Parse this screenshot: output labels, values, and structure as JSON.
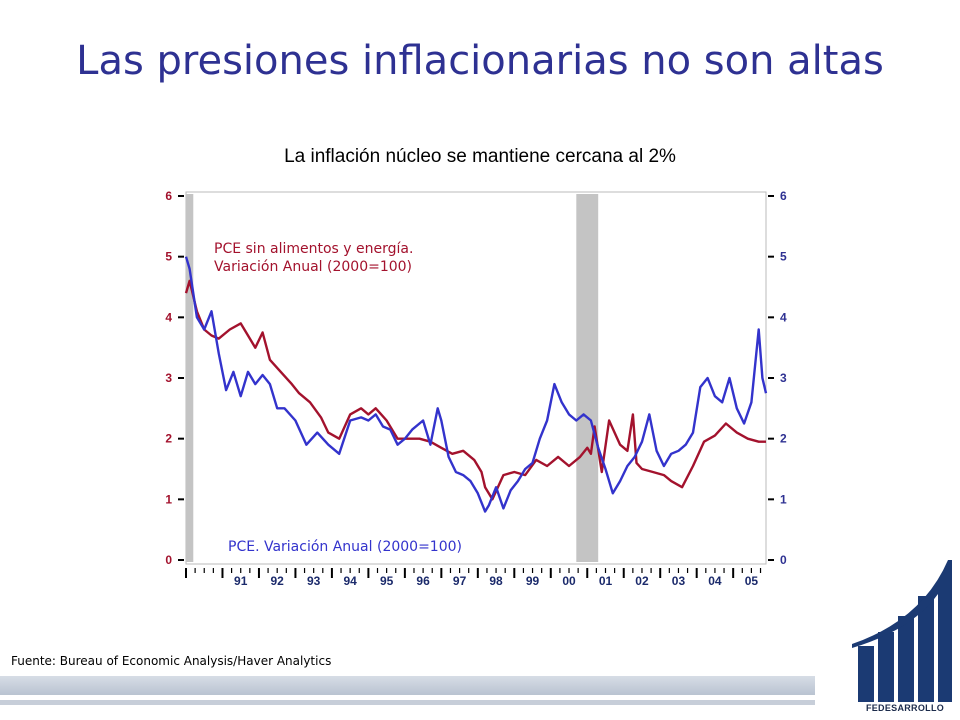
{
  "slide": {
    "title": "Las presiones inflacionarias no son altas",
    "source": "Fuente: Bureau  of Economic Analysis/Haver Analytics",
    "logo_text": "FEDESARROLLO"
  },
  "chart_data": {
    "type": "line",
    "title": "La inflación núcleo se mantiene cercana al 2%",
    "xlabel": "",
    "ylabel": "",
    "x_range": [
      1990.0,
      2005.9
    ],
    "ylim": [
      0,
      6
    ],
    "y_ticks": [
      0,
      1,
      2,
      3,
      4,
      5,
      6
    ],
    "x_tick_labels": [
      "91",
      "92",
      "93",
      "94",
      "95",
      "96",
      "97",
      "98",
      "99",
      "00",
      "01",
      "02",
      "03",
      "04",
      "05"
    ],
    "x_tick_years": [
      1991,
      1992,
      1993,
      1994,
      1995,
      1996,
      1997,
      1998,
      1999,
      2000,
      2001,
      2002,
      2003,
      2004,
      2005
    ],
    "grid": false,
    "recessions": [
      [
        1990.0,
        1990.2
      ],
      [
        2000.7,
        2001.3
      ]
    ],
    "series": [
      {
        "name": "PCE sin alimentos y energía. Variación Anual (2000=100)",
        "color": "#a3122d",
        "x": [
          1990.0,
          1990.1,
          1990.3,
          1990.5,
          1990.7,
          1990.9,
          1991.2,
          1991.5,
          1991.7,
          1991.9,
          1992.1,
          1992.3,
          1992.6,
          1992.9,
          1993.1,
          1993.4,
          1993.7,
          1993.9,
          1994.2,
          1994.5,
          1994.8,
          1995.0,
          1995.2,
          1995.5,
          1995.8,
          1996.1,
          1996.4,
          1996.7,
          1997.0,
          1997.3,
          1997.6,
          1997.9,
          1998.1,
          1998.2,
          1998.4,
          1998.7,
          1999.0,
          1999.3,
          1999.6,
          1999.9,
          2000.2,
          2000.5,
          2000.8,
          2001.0,
          2001.1,
          2001.2,
          2001.4,
          2001.6,
          2001.9,
          2002.1,
          2002.25,
          2002.35,
          2002.5,
          2002.8,
          2003.1,
          2003.3,
          2003.6,
          2003.9,
          2004.2,
          2004.5,
          2004.8,
          2005.1,
          2005.4,
          2005.7,
          2005.9
        ],
        "y": [
          4.4,
          4.6,
          4.1,
          3.8,
          3.7,
          3.65,
          3.8,
          3.9,
          3.7,
          3.5,
          3.75,
          3.3,
          3.1,
          2.9,
          2.75,
          2.6,
          2.35,
          2.1,
          2.0,
          2.4,
          2.5,
          2.4,
          2.5,
          2.3,
          2.0,
          2.0,
          2.0,
          1.95,
          1.85,
          1.75,
          1.8,
          1.65,
          1.45,
          1.2,
          1.0,
          1.4,
          1.45,
          1.4,
          1.65,
          1.55,
          1.7,
          1.55,
          1.7,
          1.85,
          1.75,
          2.2,
          1.45,
          2.3,
          1.9,
          1.8,
          2.4,
          1.6,
          1.5,
          1.45,
          1.4,
          1.3,
          1.2,
          1.55,
          1.95,
          2.05,
          2.25,
          2.1,
          2.0,
          1.95,
          1.95
        ]
      },
      {
        "name": "PCE. Variación Anual (2000=100)",
        "color": "#3333cc",
        "x": [
          1990.0,
          1990.1,
          1990.3,
          1990.5,
          1990.7,
          1990.9,
          1991.1,
          1991.3,
          1991.5,
          1991.7,
          1991.9,
          1992.1,
          1992.3,
          1992.5,
          1992.7,
          1993.0,
          1993.3,
          1993.6,
          1993.9,
          1994.2,
          1994.5,
          1994.8,
          1995.0,
          1995.2,
          1995.4,
          1995.6,
          1995.8,
          1996.0,
          1996.2,
          1996.5,
          1996.7,
          1996.9,
          1997.0,
          1997.2,
          1997.4,
          1997.6,
          1997.8,
          1998.0,
          1998.2,
          1998.3,
          1998.5,
          1998.7,
          1998.9,
          1999.1,
          1999.3,
          1999.5,
          1999.7,
          1999.9,
          2000.1,
          2000.3,
          2000.5,
          2000.7,
          2000.9,
          2001.1,
          2001.3,
          2001.5,
          2001.7,
          2001.9,
          2002.1,
          2002.3,
          2002.5,
          2002.7,
          2002.9,
          2003.1,
          2003.3,
          2003.5,
          2003.7,
          2003.9,
          2004.1,
          2004.3,
          2004.5,
          2004.7,
          2004.9,
          2005.1,
          2005.3,
          2005.5,
          2005.7,
          2005.8,
          2005.9
        ],
        "y": [
          5.0,
          4.8,
          4.0,
          3.8,
          4.1,
          3.4,
          2.8,
          3.1,
          2.7,
          3.1,
          2.9,
          3.05,
          2.9,
          2.5,
          2.5,
          2.3,
          1.9,
          2.1,
          1.9,
          1.75,
          2.3,
          2.35,
          2.3,
          2.4,
          2.2,
          2.15,
          1.9,
          2.0,
          2.15,
          2.3,
          1.9,
          2.5,
          2.3,
          1.7,
          1.45,
          1.4,
          1.3,
          1.1,
          0.8,
          0.9,
          1.2,
          0.85,
          1.15,
          1.3,
          1.5,
          1.6,
          2.0,
          2.3,
          2.9,
          2.6,
          2.4,
          2.3,
          2.4,
          2.3,
          1.85,
          1.5,
          1.1,
          1.3,
          1.55,
          1.7,
          1.95,
          2.4,
          1.8,
          1.55,
          1.75,
          1.8,
          1.9,
          2.1,
          2.85,
          3.0,
          2.7,
          2.6,
          3.0,
          2.5,
          2.25,
          2.6,
          3.8,
          3.0,
          2.75
        ]
      }
    ]
  }
}
